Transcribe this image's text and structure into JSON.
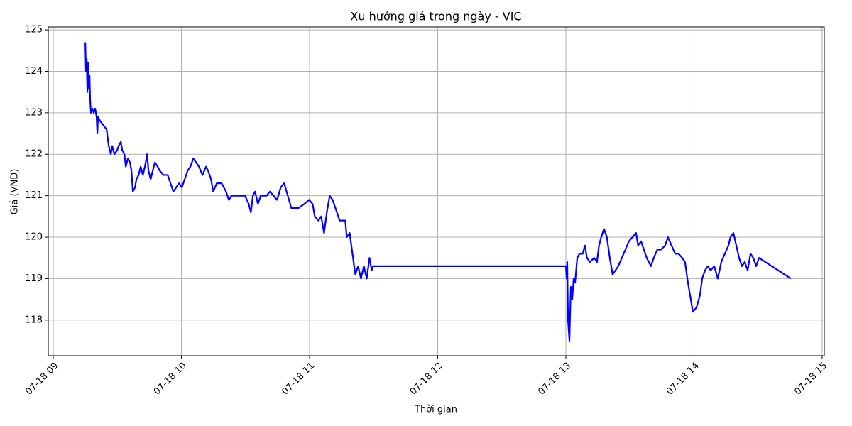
{
  "chart_data": {
    "type": "line",
    "title": "Xu hướng giá trong ngày - VIC",
    "xlabel": "Thời gian",
    "ylabel": "Giá (VND)",
    "color": "#0000ff",
    "grid": true,
    "xlim": [
      8.961,
      15.017
    ],
    "ylim": [
      117.14,
      125.07
    ],
    "xticks": [
      {
        "value": 9,
        "label": "07-18 09"
      },
      {
        "value": 10,
        "label": "07-18 10"
      },
      {
        "value": 11,
        "label": "07-18 11"
      },
      {
        "value": 12,
        "label": "07-18 12"
      },
      {
        "value": 13,
        "label": "07-18 13"
      },
      {
        "value": 14,
        "label": "07-18 14"
      },
      {
        "value": 15,
        "label": "07-18 15"
      }
    ],
    "yticks": [
      118,
      119,
      120,
      121,
      122,
      123,
      124,
      125
    ],
    "x": [
      9.25,
      9.255,
      9.261,
      9.266,
      9.272,
      9.277,
      9.283,
      9.288,
      9.294,
      9.305,
      9.316,
      9.327,
      9.338,
      9.344,
      9.349,
      9.366,
      9.416,
      9.433,
      9.449,
      9.46,
      9.477,
      9.499,
      9.51,
      9.527,
      9.538,
      9.555,
      9.566,
      9.582,
      9.599,
      9.61,
      9.621,
      9.638,
      9.649,
      9.666,
      9.682,
      9.699,
      9.715,
      9.727,
      9.732,
      9.743,
      9.76,
      9.776,
      9.793,
      9.815,
      9.832,
      9.86,
      9.893,
      9.915,
      9.937,
      9.959,
      9.982,
      10.004,
      10.026,
      10.048,
      10.07,
      10.093,
      10.115,
      10.137,
      10.165,
      10.192,
      10.209,
      10.231,
      10.248,
      10.276,
      10.314,
      10.348,
      10.37,
      10.392,
      10.442,
      10.497,
      10.525,
      10.542,
      10.558,
      10.575,
      10.597,
      10.619,
      10.664,
      10.691,
      10.719,
      10.747,
      10.775,
      10.802,
      10.83,
      10.858,
      10.913,
      10.958,
      10.997,
      11.024,
      11.041,
      11.069,
      11.091,
      11.113,
      11.135,
      11.157,
      11.18,
      11.202,
      11.235,
      11.279,
      11.29,
      11.313,
      11.335,
      11.357,
      11.379,
      11.401,
      11.424,
      11.446,
      11.468,
      11.485,
      11.496,
      13.0,
      13.006,
      13.011,
      13.017,
      13.028,
      13.039,
      13.05,
      13.061,
      13.072,
      13.089,
      13.106,
      13.132,
      13.148,
      13.165,
      13.187,
      13.221,
      13.243,
      13.259,
      13.276,
      13.298,
      13.32,
      13.343,
      13.365,
      13.387,
      13.409,
      13.437,
      13.465,
      13.492,
      13.52,
      13.548,
      13.564,
      13.587,
      13.609,
      13.631,
      13.664,
      13.686,
      13.714,
      13.742,
      13.775,
      13.797,
      13.825,
      13.853,
      13.88,
      13.908,
      13.93,
      13.953,
      13.975,
      13.991,
      14.019,
      14.047,
      14.064,
      14.086,
      14.108,
      14.13,
      14.158,
      14.186,
      14.213,
      14.241,
      14.269,
      14.285,
      14.308,
      14.33,
      14.352,
      14.374,
      14.396,
      14.419,
      14.441,
      14.463,
      14.485,
      14.507,
      14.757
    ],
    "values": [
      124.7,
      124.0,
      124.3,
      123.5,
      124.2,
      123.6,
      123.9,
      123.3,
      123.0,
      123.1,
      123.0,
      123.1,
      122.9,
      122.5,
      122.9,
      122.8,
      122.6,
      122.2,
      122.0,
      122.2,
      122.0,
      122.1,
      122.2,
      122.3,
      122.1,
      122.0,
      121.7,
      121.9,
      121.8,
      121.6,
      121.1,
      121.2,
      121.4,
      121.5,
      121.7,
      121.5,
      121.7,
      121.9,
      122.0,
      121.6,
      121.4,
      121.6,
      121.8,
      121.7,
      121.6,
      121.5,
      121.5,
      121.3,
      121.1,
      121.2,
      121.3,
      121.2,
      121.4,
      121.6,
      121.7,
      121.9,
      121.8,
      121.7,
      121.5,
      121.7,
      121.6,
      121.4,
      121.1,
      121.3,
      121.3,
      121.1,
      120.9,
      121.0,
      121.0,
      121.0,
      120.8,
      120.6,
      121.0,
      121.1,
      120.8,
      121.0,
      121.0,
      121.1,
      121.0,
      120.9,
      121.2,
      121.3,
      121.0,
      120.7,
      120.7,
      120.8,
      120.9,
      120.8,
      120.5,
      120.4,
      120.5,
      120.1,
      120.6,
      121.0,
      120.9,
      120.7,
      120.4,
      120.4,
      120.0,
      120.1,
      119.6,
      119.1,
      119.3,
      119.0,
      119.3,
      119.0,
      119.5,
      119.2,
      119.3,
      119.3,
      119.0,
      119.4,
      118.0,
      117.5,
      118.8,
      118.5,
      119.0,
      118.9,
      119.5,
      119.6,
      119.6,
      119.8,
      119.5,
      119.4,
      119.5,
      119.4,
      119.8,
      120.0,
      120.2,
      120.0,
      119.5,
      119.1,
      119.2,
      119.3,
      119.5,
      119.7,
      119.9,
      120.0,
      120.1,
      119.8,
      119.9,
      119.7,
      119.5,
      119.3,
      119.5,
      119.7,
      119.7,
      119.8,
      120.0,
      119.8,
      119.6,
      119.6,
      119.5,
      119.4,
      118.9,
      118.5,
      118.2,
      118.3,
      118.6,
      119.0,
      119.2,
      119.3,
      119.2,
      119.3,
      119.0,
      119.4,
      119.6,
      119.8,
      120.0,
      120.1,
      119.8,
      119.5,
      119.3,
      119.4,
      119.2,
      119.6,
      119.5,
      119.3,
      119.5,
      119.0
    ]
  }
}
